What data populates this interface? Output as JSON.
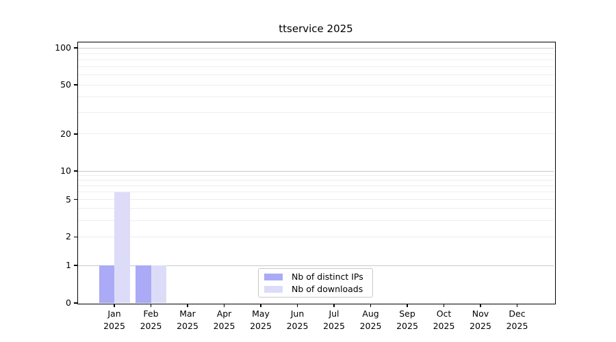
{
  "chart_data": {
    "type": "bar",
    "title": "ttservice 2025",
    "x_year": "2025",
    "categories": [
      "Jan",
      "Feb",
      "Mar",
      "Apr",
      "May",
      "Jun",
      "Jul",
      "Aug",
      "Sep",
      "Oct",
      "Nov",
      "Dec"
    ],
    "series": [
      {
        "name": "Nb of distinct IPs",
        "color": "#aaaaf6",
        "values": [
          1,
          1,
          0,
          0,
          0,
          0,
          0,
          0,
          0,
          0,
          0,
          0
        ]
      },
      {
        "name": "Nb of downloads",
        "color": "#dcdcf9",
        "values": [
          6,
          1,
          0,
          0,
          0,
          0,
          0,
          0,
          0,
          0,
          0,
          0
        ]
      }
    ],
    "y_axis": {
      "scale": "symlog",
      "range": [
        0,
        100
      ],
      "tick_labels": [
        0,
        1,
        2,
        5,
        10,
        20,
        50,
        100
      ],
      "major_gridlines": [
        1,
        10,
        100
      ],
      "minor_gridlines": [
        2,
        3,
        4,
        5,
        6,
        7,
        8,
        9,
        20,
        30,
        40,
        50,
        60,
        70,
        80,
        90
      ],
      "gridline_color_major": "#c9c9c9",
      "gridline_color_minor": "#ededed"
    },
    "legend": {
      "position": "lower center"
    }
  }
}
